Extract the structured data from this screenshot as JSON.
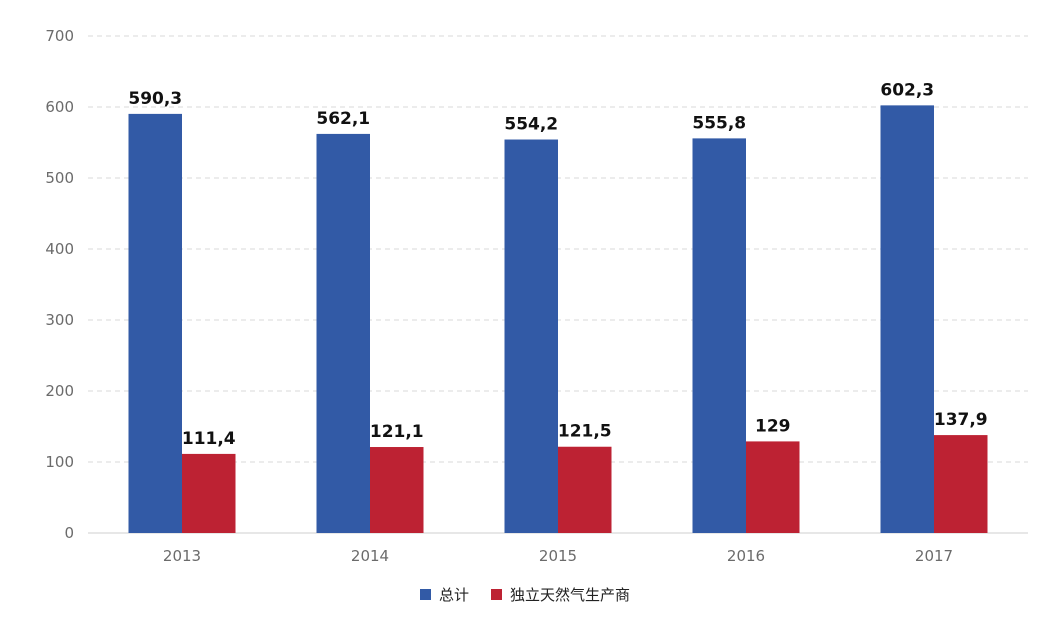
{
  "chart_data": {
    "type": "bar",
    "categories": [
      "2013",
      "2014",
      "2015",
      "2016",
      "2017"
    ],
    "series": [
      {
        "name": "总计",
        "color": "#325aa6",
        "values": [
          590.3,
          562.1,
          554.2,
          555.8,
          602.3
        ],
        "labels": [
          "590,3",
          "562,1",
          "554,2",
          "555,8",
          "602,3"
        ]
      },
      {
        "name": "独立天然气生产商",
        "color": "#bd2233",
        "values": [
          111.4,
          121.1,
          121.5,
          129,
          137.9
        ],
        "labels": [
          "111,4",
          "121,1",
          "121,5",
          "129",
          "137,9"
        ]
      }
    ],
    "y_ticks": [
      "0",
      "100",
      "200",
      "300",
      "400",
      "500",
      "600",
      "700"
    ],
    "ylim": [
      0,
      700
    ],
    "grid": true,
    "legend_position": "bottom-center"
  }
}
